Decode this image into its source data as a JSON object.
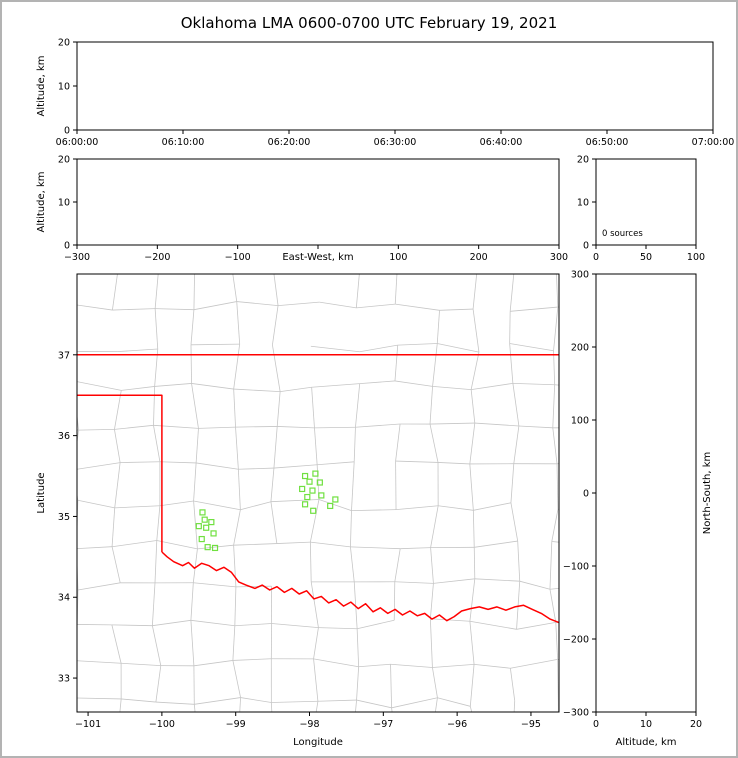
{
  "title": "Oklahoma LMA 0600-0700 UTC February 19, 2021",
  "colors": {
    "background": "#ffffff",
    "figure_border": "#b3b3b3",
    "axes": "#000000",
    "county_lines": "#c6c6c6",
    "state_border": "#ff0000",
    "sources": "#70e040"
  },
  "chart_data": [
    {
      "id": "time-height",
      "type": "scatter",
      "title": "",
      "xlabel": "",
      "ylabel": "Altitude, km",
      "x_tick_labels": [
        "06:00:00",
        "06:10:00",
        "06:20:00",
        "06:30:00",
        "06:40:00",
        "06:50:00",
        "07:00:00"
      ],
      "ylim": [
        0,
        20
      ],
      "yticks": [
        0,
        10,
        20
      ],
      "points": []
    },
    {
      "id": "east-west-height",
      "type": "scatter",
      "xlabel": "East-West, km",
      "xlabel_row": "ticks",
      "hide_zero_xtick_label": true,
      "ylabel": "Altitude, km",
      "xlim": [
        -300,
        300
      ],
      "xticks": [
        -300,
        -200,
        -100,
        0,
        100,
        200,
        300
      ],
      "ylim": [
        0,
        20
      ],
      "yticks": [
        0,
        10,
        20
      ],
      "points": []
    },
    {
      "id": "altitude-histogram",
      "type": "line",
      "annotation": "0 sources",
      "xlim": [
        0,
        100
      ],
      "xticks": [
        0,
        50,
        100
      ],
      "ylim": [
        0,
        20
      ],
      "yticks": [
        0,
        10,
        20
      ],
      "points": []
    },
    {
      "id": "plan-view",
      "type": "scatter",
      "xlabel": "Longitude",
      "ylabel": "Latitude",
      "xlim": [
        -101.15,
        -94.62
      ],
      "xticks": [
        -101,
        -100,
        -99,
        -98,
        -97,
        -96,
        -95
      ],
      "ylim": [
        32.58,
        38.0
      ],
      "yticks": [
        33,
        34,
        35,
        36,
        37
      ],
      "points": [
        [
          -99.45,
          35.05
        ],
        [
          -99.42,
          34.96
        ],
        [
          -99.33,
          34.93
        ],
        [
          -99.5,
          34.88
        ],
        [
          -99.4,
          34.86
        ],
        [
          -99.3,
          34.79
        ],
        [
          -99.46,
          34.72
        ],
        [
          -99.38,
          34.62
        ],
        [
          -99.28,
          34.61
        ],
        [
          -98.06,
          35.5
        ],
        [
          -97.92,
          35.53
        ],
        [
          -98.0,
          35.43
        ],
        [
          -97.86,
          35.42
        ],
        [
          -98.1,
          35.34
        ],
        [
          -97.96,
          35.32
        ],
        [
          -98.03,
          35.24
        ],
        [
          -97.84,
          35.26
        ],
        [
          -97.65,
          35.21
        ],
        [
          -98.06,
          35.15
        ],
        [
          -97.95,
          35.07
        ],
        [
          -97.72,
          35.13
        ]
      ],
      "state_border": {
        "kansas_border": [
          [
            -101.15,
            37.0
          ],
          [
            -94.62,
            37.0
          ]
        ],
        "panhandle_border": [
          [
            -101.15,
            36.5
          ],
          [
            -100.0,
            36.5
          ],
          [
            -100.0,
            34.56
          ]
        ],
        "red_river_border": [
          [
            -100.0,
            34.56
          ],
          [
            -99.93,
            34.5
          ],
          [
            -99.84,
            34.44
          ],
          [
            -99.72,
            34.39
          ],
          [
            -99.64,
            34.43
          ],
          [
            -99.56,
            34.36
          ],
          [
            -99.46,
            34.42
          ],
          [
            -99.36,
            34.39
          ],
          [
            -99.26,
            34.33
          ],
          [
            -99.16,
            34.37
          ],
          [
            -99.06,
            34.31
          ],
          [
            -98.96,
            34.19
          ],
          [
            -98.86,
            34.15
          ],
          [
            -98.74,
            34.11
          ],
          [
            -98.64,
            34.15
          ],
          [
            -98.54,
            34.09
          ],
          [
            -98.44,
            34.13
          ],
          [
            -98.34,
            34.06
          ],
          [
            -98.24,
            34.11
          ],
          [
            -98.14,
            34.04
          ],
          [
            -98.04,
            34.08
          ],
          [
            -97.94,
            33.98
          ],
          [
            -97.84,
            34.01
          ],
          [
            -97.74,
            33.93
          ],
          [
            -97.64,
            33.97
          ],
          [
            -97.54,
            33.89
          ],
          [
            -97.44,
            33.94
          ],
          [
            -97.34,
            33.86
          ],
          [
            -97.24,
            33.92
          ],
          [
            -97.14,
            33.82
          ],
          [
            -97.04,
            33.87
          ],
          [
            -96.94,
            33.8
          ],
          [
            -96.84,
            33.85
          ],
          [
            -96.74,
            33.78
          ],
          [
            -96.64,
            33.83
          ],
          [
            -96.54,
            33.77
          ],
          [
            -96.44,
            33.8
          ],
          [
            -96.34,
            33.73
          ],
          [
            -96.24,
            33.78
          ],
          [
            -96.14,
            33.71
          ],
          [
            -96.04,
            33.76
          ],
          [
            -95.94,
            33.83
          ],
          [
            -95.82,
            33.86
          ],
          [
            -95.7,
            33.88
          ],
          [
            -95.58,
            33.85
          ],
          [
            -95.46,
            33.88
          ],
          [
            -95.34,
            33.84
          ],
          [
            -95.22,
            33.88
          ],
          [
            -95.1,
            33.9
          ],
          [
            -94.98,
            33.85
          ],
          [
            -94.86,
            33.8
          ],
          [
            -94.74,
            33.73
          ],
          [
            -94.6,
            33.68
          ]
        ]
      }
    },
    {
      "id": "altitude-north-south",
      "type": "scatter",
      "xlabel": "Altitude, km",
      "ylabel": "North-South, km",
      "ylabel_side": "right",
      "xlim": [
        0,
        20
      ],
      "xticks": [
        0,
        10,
        20
      ],
      "ylim": [
        -300,
        300
      ],
      "yticks": [
        -300,
        -200,
        -100,
        0,
        100,
        200,
        300
      ],
      "points": []
    }
  ]
}
